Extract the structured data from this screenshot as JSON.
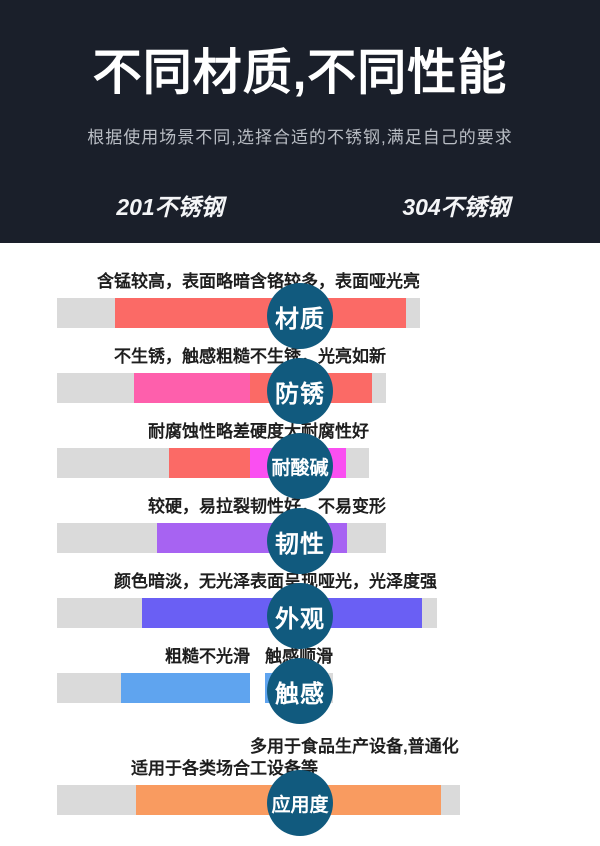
{
  "header": {
    "title": "不同材质,不同性能",
    "subtitle": "根据使用场景不同,选择合适的不锈钢,满足自己的要求",
    "left_column": "201不锈钢",
    "right_column": "304不锈钢"
  },
  "colors": {
    "header_bg": "#1a1f2a",
    "badge": "#115a7e",
    "track": "#dadada",
    "coral_red": "#fb6a66",
    "hot_pink": "#fe5fac",
    "magenta": "#fa4ff1",
    "purple": "#a763f2",
    "indigo": "#6a5ff4",
    "blue": "#5fa4ef",
    "orange": "#f99b60",
    "label_text": "#1e1e1e"
  },
  "rows": [
    {
      "category": "材质",
      "left": {
        "text": "含锰较高，表面略暗",
        "fill": "70%",
        "color": "#fb6a66"
      },
      "right": {
        "text": "含铬较多，表面哑光亮",
        "fill": "92%",
        "color": "#fb6a66"
      }
    },
    {
      "category": "防锈",
      "left": {
        "text": "不生锈，触感粗糙",
        "fill": "60%",
        "color": "#fe5fac"
      },
      "right": {
        "text": "不生锈，光亮如新",
        "fill": "90%",
        "color": "#fb6a66"
      }
    },
    {
      "category": "耐酸碱",
      "left": {
        "text": "耐腐蚀性略差",
        "fill": "42%",
        "color": "#fb6a66"
      },
      "right": {
        "text": "硬度大耐腐性好",
        "fill": "81%",
        "color": "#fa4ff1"
      }
    },
    {
      "category": "韧性",
      "left": {
        "text": "较硬，易拉裂",
        "fill": "48%",
        "color": "#a763f2"
      },
      "right": {
        "text": "韧性好，不易变形",
        "fill": "71%",
        "color": "#a763f2"
      }
    },
    {
      "category": "外观",
      "left": {
        "text": "颜色暗淡，无光泽",
        "fill": "56%",
        "color": "#6a5ff4"
      },
      "right": {
        "text": "表面呈现哑光，光泽度强",
        "fill": "92%",
        "color": "#6a5ff4"
      }
    },
    {
      "category": "触感",
      "left": {
        "text": "粗糙不光滑",
        "fill": "67%",
        "color": "#5fa4ef"
      },
      "right": {
        "text": "触感顺滑",
        "fill": "88%",
        "color": "#5fa4ef"
      }
    },
    {
      "category": "应用度",
      "left": {
        "text": "适用于各类场合",
        "fill": "59%",
        "color": "#f99b60"
      },
      "right": {
        "text": "多用于食品生产设备,普通化工设备等",
        "fill": "91%",
        "color": "#f99b60"
      }
    }
  ],
  "chart_data": {
    "type": "bar",
    "orientation": "horizontal-paired",
    "title": "不同材质,不同性能",
    "subtitle": "根据使用场景不同,选择合适的不锈钢,满足自己的要求",
    "categories": [
      "材质",
      "防锈",
      "耐酸碱",
      "韧性",
      "外观",
      "触感",
      "应用度"
    ],
    "value_range": [
      0,
      100
    ],
    "series": [
      {
        "name": "201不锈钢",
        "values_pct": [
          70,
          60,
          42,
          48,
          56,
          67,
          59
        ],
        "labels": [
          "含锰较高，表面略暗",
          "不生锈，触感粗糙",
          "耐腐蚀性略差",
          "较硬，易拉裂",
          "颜色暗淡，无光泽",
          "粗糙不光滑",
          "适用于各类场合"
        ],
        "bar_colors": [
          "#fb6a66",
          "#fe5fac",
          "#fb6a66",
          "#a763f2",
          "#6a5ff4",
          "#5fa4ef",
          "#f99b60"
        ]
      },
      {
        "name": "304不锈钢",
        "values_pct": [
          92,
          90,
          81,
          71,
          92,
          88,
          91
        ],
        "labels": [
          "含铬较多，表面哑光亮",
          "不生锈，光亮如新",
          "硬度大耐腐性好",
          "韧性好，不易变形",
          "表面呈现哑光，光泽度强",
          "触感顺滑",
          "多用于食品生产设备,普通化工设备等"
        ],
        "bar_colors": [
          "#fb6a66",
          "#fb6a66",
          "#fa4ff1",
          "#a763f2",
          "#6a5ff4",
          "#5fa4ef",
          "#f99b60"
        ]
      }
    ],
    "legend_position": "top",
    "grid": false
  }
}
